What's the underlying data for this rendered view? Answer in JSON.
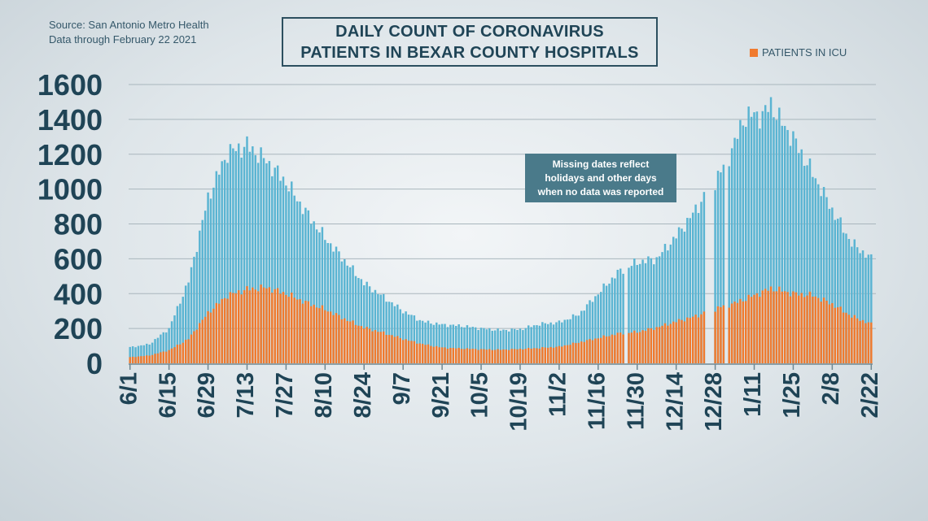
{
  "source": {
    "line1": "Source: San Antonio Metro Health",
    "line2": "Data through February 22 2021"
  },
  "title": {
    "line1": "DAILY COUNT OF CORONAVIRUS",
    "line2": "PATIENTS IN BEXAR COUNTY HOSPITALS"
  },
  "legend": {
    "label": "PATIENTS IN ICU",
    "color": "#f07a2e"
  },
  "annotation": {
    "line1": "Missing dates reflect",
    "line2": "holidays and other days",
    "line3": "when no data was reported"
  },
  "colors": {
    "total": "#5ab4d2",
    "icu": "#f07a2e",
    "text": "#1f4456",
    "grid": "#a9b6bd"
  },
  "chart_data": {
    "type": "bar",
    "stacked_overlay": true,
    "x_ticks": [
      "6/1",
      "6/15",
      "6/29",
      "7/13",
      "7/27",
      "8/10",
      "8/24",
      "9/7",
      "9/21",
      "10/5",
      "10/19",
      "11/2",
      "11/16",
      "11/30",
      "12/14",
      "12/28",
      "1/11",
      "1/25",
      "2/8",
      "2/22"
    ],
    "ylim": [
      0,
      1600
    ],
    "yticks": [
      0,
      200,
      400,
      600,
      800,
      1000,
      1200,
      1400,
      1600
    ],
    "grid": true,
    "legend_position": "top-right",
    "missing_dates": [
      "2020-11-26",
      "2020-12-25",
      "2020-12-26",
      "2020-12-27",
      "2021-01-01"
    ],
    "keypoints_total": [
      [
        "2020-06-01",
        92
      ],
      [
        "2020-06-08",
        110
      ],
      [
        "2020-06-15",
        200
      ],
      [
        "2020-06-22",
        470
      ],
      [
        "2020-06-29",
        950
      ],
      [
        "2020-07-06",
        1210
      ],
      [
        "2020-07-13",
        1250
      ],
      [
        "2020-07-20",
        1160
      ],
      [
        "2020-07-27",
        1040
      ],
      [
        "2020-08-03",
        870
      ],
      [
        "2020-08-10",
        720
      ],
      [
        "2020-08-17",
        590
      ],
      [
        "2020-08-24",
        460
      ],
      [
        "2020-08-31",
        380
      ],
      [
        "2020-09-07",
        300
      ],
      [
        "2020-09-14",
        240
      ],
      [
        "2020-09-21",
        222
      ],
      [
        "2020-09-28",
        215
      ],
      [
        "2020-10-05",
        200
      ],
      [
        "2020-10-12",
        190
      ],
      [
        "2020-10-19",
        195
      ],
      [
        "2020-10-26",
        225
      ],
      [
        "2020-11-02",
        235
      ],
      [
        "2020-11-09",
        280
      ],
      [
        "2020-11-16",
        400
      ],
      [
        "2020-11-23",
        520
      ],
      [
        "2020-11-30",
        580
      ],
      [
        "2020-12-07",
        600
      ],
      [
        "2020-12-14",
        730
      ],
      [
        "2020-12-21",
        880
      ],
      [
        "2020-12-24",
        960
      ],
      [
        "2020-12-28",
        1040
      ],
      [
        "2020-12-31",
        1130
      ],
      [
        "2021-01-04",
        1260
      ],
      [
        "2021-01-07",
        1400
      ],
      [
        "2021-01-11",
        1430
      ],
      [
        "2021-01-14",
        1420
      ],
      [
        "2021-01-17",
        1490
      ],
      [
        "2021-01-20",
        1400
      ],
      [
        "2021-01-25",
        1290
      ],
      [
        "2021-02-01",
        1090
      ],
      [
        "2021-02-08",
        880
      ],
      [
        "2021-02-15",
        690
      ],
      [
        "2021-02-22",
        600
      ]
    ],
    "keypoints_icu": [
      [
        "2020-06-01",
        35
      ],
      [
        "2020-06-08",
        45
      ],
      [
        "2020-06-15",
        75
      ],
      [
        "2020-06-22",
        140
      ],
      [
        "2020-06-29",
        290
      ],
      [
        "2020-07-06",
        390
      ],
      [
        "2020-07-13",
        425
      ],
      [
        "2020-07-20",
        435
      ],
      [
        "2020-07-27",
        400
      ],
      [
        "2020-08-03",
        350
      ],
      [
        "2020-08-10",
        310
      ],
      [
        "2020-08-17",
        255
      ],
      [
        "2020-08-24",
        205
      ],
      [
        "2020-08-31",
        175
      ],
      [
        "2020-09-07",
        140
      ],
      [
        "2020-09-14",
        110
      ],
      [
        "2020-09-21",
        90
      ],
      [
        "2020-09-28",
        85
      ],
      [
        "2020-10-05",
        80
      ],
      [
        "2020-10-12",
        78
      ],
      [
        "2020-10-19",
        82
      ],
      [
        "2020-10-26",
        88
      ],
      [
        "2020-11-02",
        95
      ],
      [
        "2020-11-09",
        120
      ],
      [
        "2020-11-16",
        145
      ],
      [
        "2020-11-23",
        170
      ],
      [
        "2020-11-30",
        180
      ],
      [
        "2020-12-07",
        205
      ],
      [
        "2020-12-14",
        240
      ],
      [
        "2020-12-21",
        270
      ],
      [
        "2020-12-24",
        290
      ],
      [
        "2020-12-28",
        310
      ],
      [
        "2020-12-31",
        330
      ],
      [
        "2021-01-04",
        345
      ],
      [
        "2021-01-11",
        390
      ],
      [
        "2021-01-17",
        430
      ],
      [
        "2021-01-20",
        420
      ],
      [
        "2021-01-25",
        400
      ],
      [
        "2021-02-01",
        390
      ],
      [
        "2021-02-08",
        340
      ],
      [
        "2021-02-15",
        270
      ],
      [
        "2021-02-22",
        225
      ]
    ]
  }
}
